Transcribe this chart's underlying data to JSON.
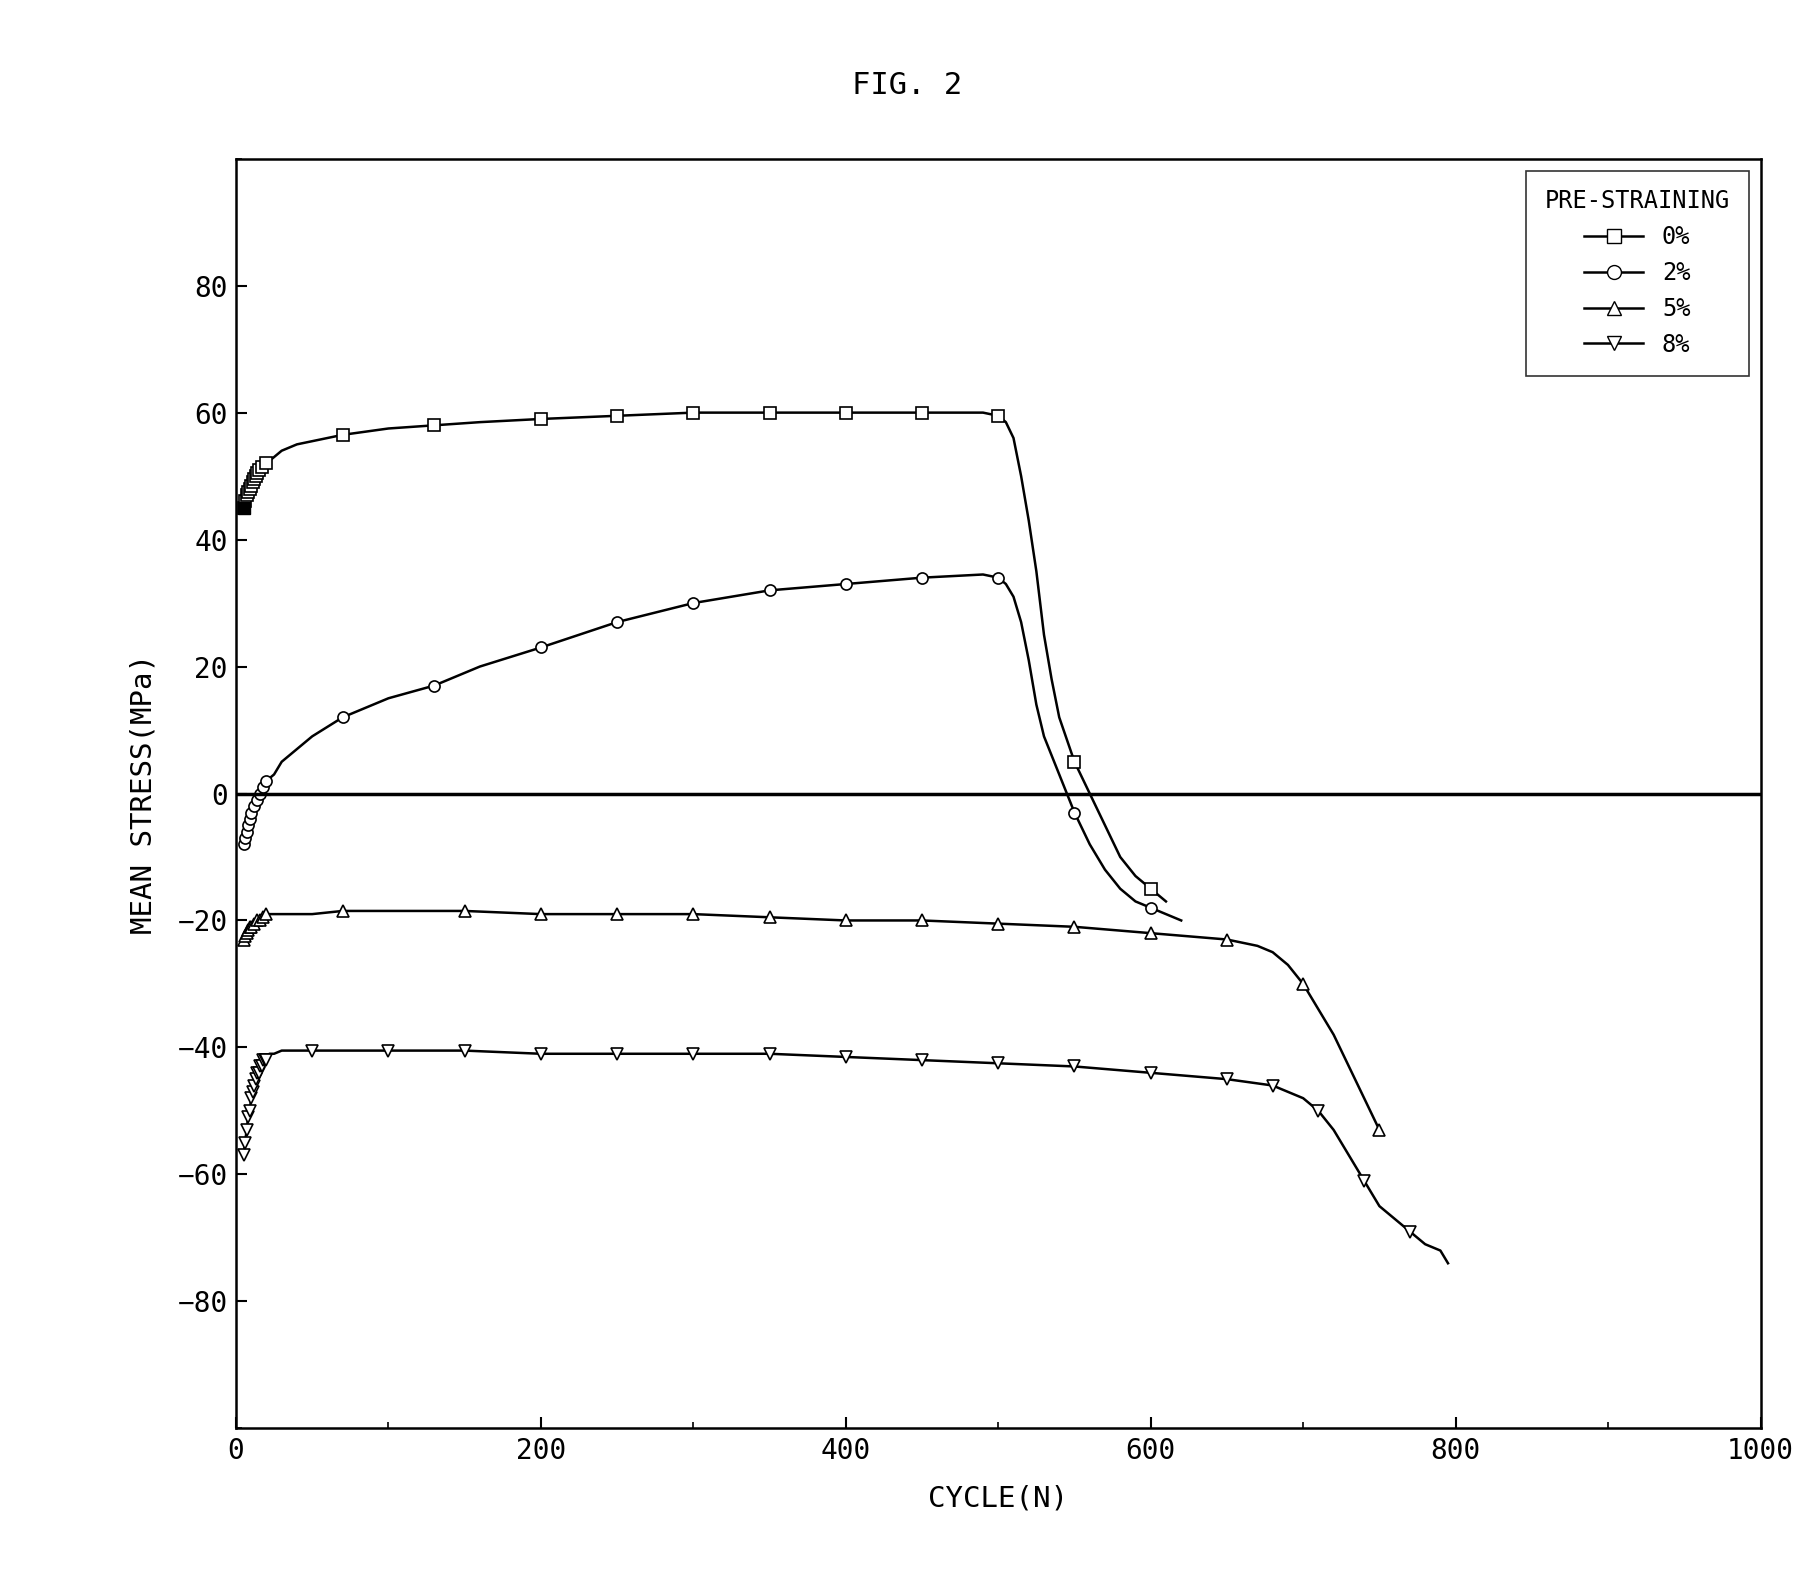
{
  "title": "FIG. 2",
  "xlabel": "CYCLE(N)",
  "ylabel": "MEAN STRESS(MPa)",
  "xlim": [
    0,
    1000
  ],
  "ylim": [
    -100,
    100
  ],
  "xticks": [
    0,
    200,
    400,
    600,
    800,
    1000
  ],
  "yticks": [
    -80,
    -60,
    -40,
    -20,
    0,
    20,
    40,
    60,
    80
  ],
  "legend_title": "PRE-STRAINING",
  "background_color": "#ffffff",
  "series_0pct": {
    "x": [
      5,
      6,
      7,
      8,
      9,
      10,
      11,
      12,
      13,
      14,
      15,
      17,
      20,
      25,
      30,
      40,
      50,
      70,
      100,
      130,
      160,
      200,
      250,
      300,
      350,
      400,
      450,
      490,
      500,
      505,
      510,
      515,
      520,
      525,
      530,
      535,
      540,
      550,
      560,
      570,
      580,
      590,
      600,
      610
    ],
    "y": [
      45,
      46,
      47,
      47.5,
      48,
      48.5,
      49,
      49.5,
      50,
      50.5,
      51,
      51.5,
      52,
      53,
      54,
      55,
      55.5,
      56.5,
      57.5,
      58,
      58.5,
      59,
      59.5,
      60,
      60,
      60,
      60,
      60,
      59.5,
      58.5,
      56,
      50,
      43,
      35,
      25,
      18,
      12,
      5,
      0,
      -5,
      -10,
      -13,
      -15,
      -17
    ]
  },
  "series_2pct": {
    "x": [
      5,
      6,
      7,
      8,
      9,
      10,
      12,
      14,
      16,
      18,
      20,
      25,
      30,
      40,
      50,
      70,
      100,
      130,
      160,
      200,
      250,
      300,
      350,
      400,
      450,
      490,
      500,
      505,
      510,
      515,
      520,
      525,
      530,
      540,
      550,
      560,
      570,
      580,
      590,
      600,
      610,
      620
    ],
    "y": [
      -8,
      -7,
      -6,
      -5,
      -4,
      -3,
      -2,
      -1,
      0,
      1,
      2,
      3,
      5,
      7,
      9,
      12,
      15,
      17,
      20,
      23,
      27,
      30,
      32,
      33,
      34,
      34.5,
      34,
      33,
      31,
      27,
      21,
      14,
      9,
      3,
      -3,
      -8,
      -12,
      -15,
      -17,
      -18,
      -19,
      -20
    ]
  },
  "series_5pct": {
    "x": [
      5,
      6,
      7,
      8,
      9,
      10,
      12,
      14,
      16,
      18,
      20,
      25,
      30,
      40,
      50,
      70,
      100,
      150,
      200,
      250,
      300,
      350,
      400,
      450,
      500,
      550,
      600,
      650,
      670,
      680,
      690,
      700,
      710,
      720,
      730,
      740,
      750
    ],
    "y": [
      -23,
      -22.5,
      -22,
      -21.5,
      -21,
      -21,
      -20.5,
      -20,
      -20,
      -19.5,
      -19,
      -19,
      -19,
      -19,
      -19,
      -18.5,
      -18.5,
      -18.5,
      -19,
      -19,
      -19,
      -19.5,
      -20,
      -20,
      -20.5,
      -21,
      -22,
      -23,
      -24,
      -25,
      -27,
      -30,
      -34,
      -38,
      -43,
      -48,
      -53
    ]
  },
  "series_8pct": {
    "x": [
      5,
      6,
      7,
      8,
      9,
      10,
      11,
      12,
      13,
      14,
      15,
      16,
      17,
      18,
      19,
      20,
      22,
      25,
      30,
      40,
      50,
      70,
      100,
      150,
      200,
      250,
      300,
      350,
      400,
      450,
      500,
      550,
      600,
      650,
      680,
      690,
      700,
      710,
      720,
      730,
      740,
      750,
      760,
      770,
      780,
      790,
      795
    ],
    "y": [
      -57,
      -55,
      -53,
      -51,
      -50,
      -48,
      -47,
      -46,
      -45,
      -44,
      -44,
      -43,
      -43,
      -42,
      -42,
      -42,
      -41,
      -41,
      -40.5,
      -40.5,
      -40.5,
      -40.5,
      -40.5,
      -40.5,
      -41,
      -41,
      -41,
      -41,
      -41.5,
      -42,
      -42.5,
      -43,
      -44,
      -45,
      -46,
      -47,
      -48,
      -50,
      -53,
      -57,
      -61,
      -65,
      -67,
      -69,
      -71,
      -72,
      -74
    ]
  }
}
